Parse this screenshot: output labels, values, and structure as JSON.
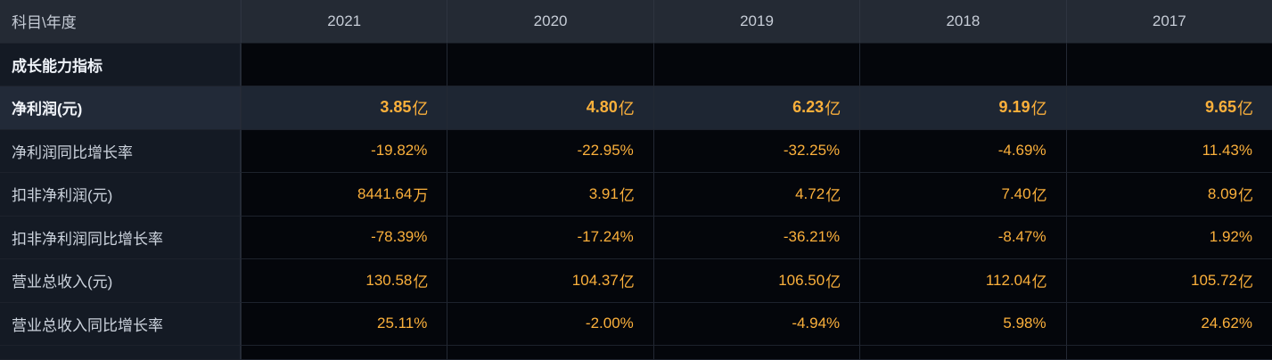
{
  "header": {
    "corner": "科目\\年度",
    "years": [
      "2021",
      "2020",
      "2019",
      "2018",
      "2017"
    ]
  },
  "section_row": {
    "label": "成长能力指标"
  },
  "rows": [
    {
      "label": "净利润(元)",
      "values": [
        {
          "num": "3.85",
          "unit": "亿"
        },
        {
          "num": "4.80",
          "unit": "亿"
        },
        {
          "num": "6.23",
          "unit": "亿"
        },
        {
          "num": "9.19",
          "unit": "亿"
        },
        {
          "num": "9.65",
          "unit": "亿"
        }
      ]
    },
    {
      "label": "净利润同比增长率",
      "values": [
        {
          "num": "-19.82%"
        },
        {
          "num": "-22.95%"
        },
        {
          "num": "-32.25%"
        },
        {
          "num": "-4.69%"
        },
        {
          "num": "11.43%"
        }
      ]
    },
    {
      "label": "扣非净利润(元)",
      "values": [
        {
          "num": "8441.64",
          "unit": "万"
        },
        {
          "num": "3.91",
          "unit": "亿"
        },
        {
          "num": "4.72",
          "unit": "亿"
        },
        {
          "num": "7.40",
          "unit": "亿"
        },
        {
          "num": "8.09",
          "unit": "亿"
        }
      ]
    },
    {
      "label": "扣非净利润同比增长率",
      "values": [
        {
          "num": "-78.39%"
        },
        {
          "num": "-17.24%"
        },
        {
          "num": "-36.21%"
        },
        {
          "num": "-8.47%"
        },
        {
          "num": "1.92%"
        }
      ]
    },
    {
      "label": "营业总收入(元)",
      "values": [
        {
          "num": "130.58",
          "unit": "亿"
        },
        {
          "num": "104.37",
          "unit": "亿"
        },
        {
          "num": "106.50",
          "unit": "亿"
        },
        {
          "num": "112.04",
          "unit": "亿"
        },
        {
          "num": "105.72",
          "unit": "亿"
        }
      ]
    },
    {
      "label": "营业总收入同比增长率",
      "values": [
        {
          "num": "25.11%"
        },
        {
          "num": "-2.00%"
        },
        {
          "num": "-4.94%"
        },
        {
          "num": "5.98%"
        },
        {
          "num": "24.62%"
        }
      ]
    }
  ],
  "colors": {
    "value_accent": "#fbb03b",
    "header_bg": "#242a34",
    "label_col_bg": "#141a24",
    "highlight_bg": "#1e2633"
  }
}
